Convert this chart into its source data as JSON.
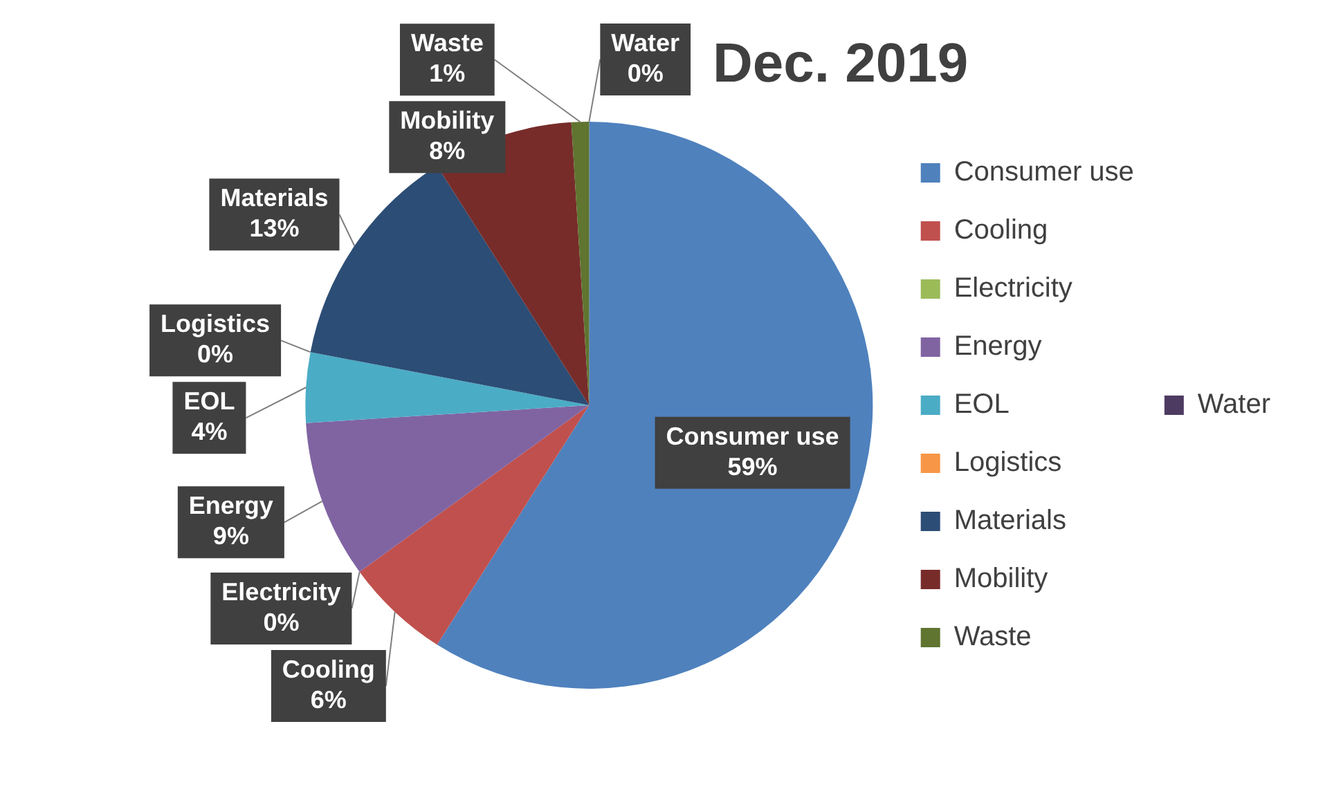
{
  "chart_data": {
    "type": "pie",
    "title": "Dec. 2019",
    "categories": [
      "Consumer use",
      "Cooling",
      "Electricity",
      "Energy",
      "EOL",
      "Logistics",
      "Materials",
      "Mobility",
      "Waste",
      "Water"
    ],
    "values": [
      59,
      6,
      0,
      9,
      4,
      0,
      13,
      8,
      1,
      0
    ],
    "value_labels": [
      "59%",
      "6%",
      "0%",
      "9%",
      "4%",
      "0%",
      "13%",
      "8%",
      "1%",
      "0%"
    ],
    "colors": [
      "#4f81bd",
      "#c0504d",
      "#9bbb59",
      "#8064a2",
      "#4bacc6",
      "#f79646",
      "#2c4d75",
      "#772c2a",
      "#5f7530",
      "#4d3b62"
    ],
    "legend": "right"
  }
}
